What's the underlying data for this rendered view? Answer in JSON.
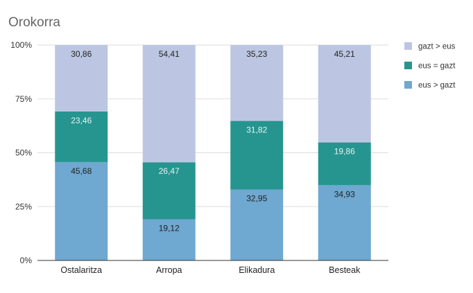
{
  "chart_data": {
    "type": "bar",
    "stacked": true,
    "title": "Orokorra",
    "xlabel": "",
    "ylabel": "",
    "categories": [
      "Ostalaritza",
      "Arropa",
      "Elikadura",
      "Besteak"
    ],
    "series": [
      {
        "name": "eus > gazt",
        "values": [
          45.68,
          19.12,
          32.95,
          34.93
        ],
        "labels": [
          "45,68",
          "19,12",
          "32,95",
          "34,93"
        ],
        "color": "#6fa8d0",
        "label_color": "#222222"
      },
      {
        "name": "eus = gazt",
        "values": [
          23.46,
          26.47,
          31.82,
          19.86
        ],
        "labels": [
          "23,46",
          "26,47",
          "31,82",
          "19,86"
        ],
        "color": "#26958f",
        "label_color": "#e8f4f3"
      },
      {
        "name": "gazt > eus",
        "values": [
          30.86,
          54.41,
          35.23,
          45.21
        ],
        "labels": [
          "30,86",
          "54,41",
          "35,23",
          "45,21"
        ],
        "color": "#bcc6e2",
        "label_color": "#222222"
      }
    ],
    "ylim": [
      0,
      100
    ],
    "yticks": [
      0,
      25,
      50,
      75,
      100
    ],
    "ytick_labels": [
      "0%",
      "25%",
      "50%",
      "75%",
      "100%"
    ],
    "legend": {
      "position": "right",
      "order": [
        "gazt > eus",
        "eus = gazt",
        "eus > gazt"
      ]
    },
    "grid": true,
    "colors": {
      "grid": "#dddddd",
      "axis": "#333333"
    }
  }
}
